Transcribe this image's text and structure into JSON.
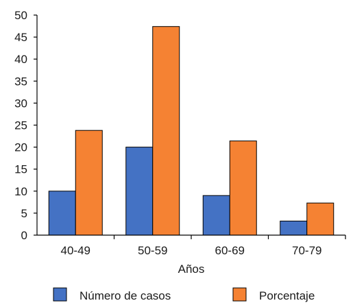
{
  "chart_data": {
    "type": "bar",
    "categories": [
      "40-49",
      "50-59",
      "60-69",
      "70-79"
    ],
    "series": [
      {
        "name": "Número de casos",
        "values": [
          10,
          20,
          9,
          3.2
        ],
        "color": "#4472c4"
      },
      {
        "name": "Porcentaje",
        "values": [
          23.8,
          47.4,
          21.4,
          7.3
        ],
        "color": "#f58233"
      }
    ],
    "xlabel": "Años",
    "ylabel": "",
    "ylim": [
      0,
      50
    ],
    "yticks": [
      0,
      5,
      10,
      15,
      20,
      25,
      30,
      35,
      40,
      45,
      50
    ],
    "grid": false,
    "legend_position": "bottom"
  }
}
